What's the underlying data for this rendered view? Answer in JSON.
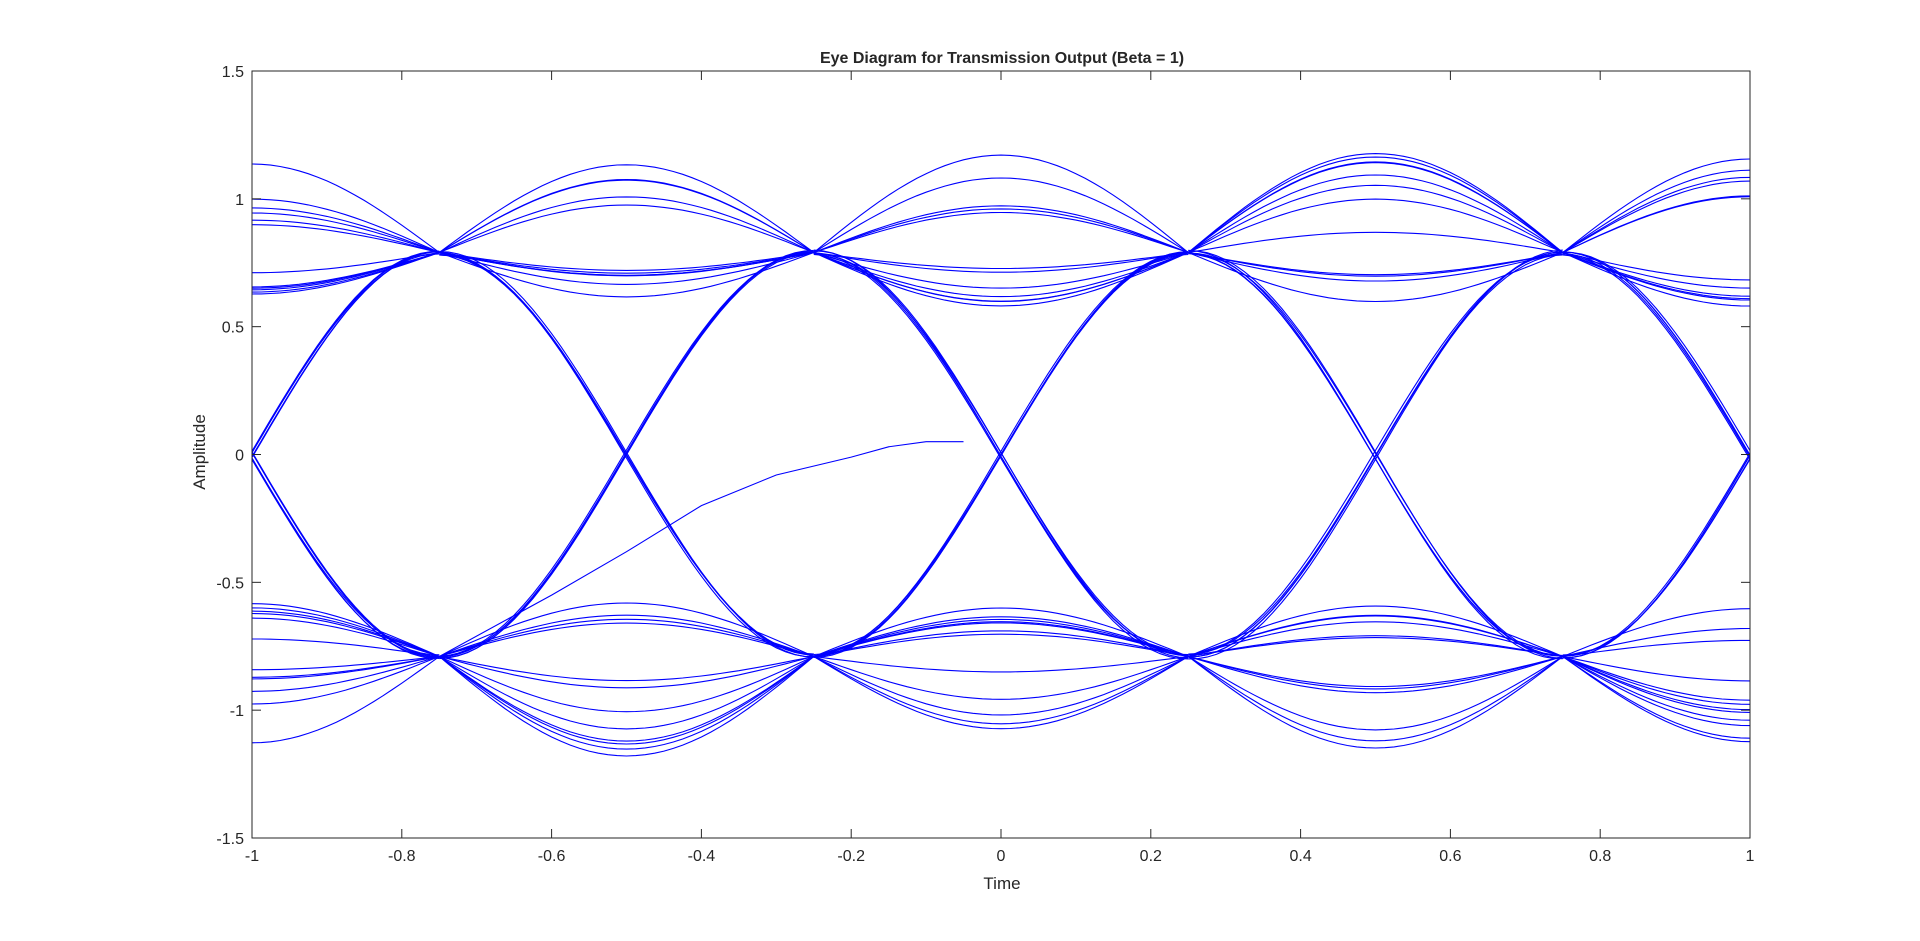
{
  "chart_data": {
    "type": "line",
    "title": "Eye Diagram for Transmission Output (Beta = 1)",
    "xlabel": "Time",
    "ylabel": "Amplitude",
    "xlim": [
      -1,
      1
    ],
    "ylim": [
      -1.5,
      1.5
    ],
    "xticks": [
      "-1",
      "-0.8",
      "-0.6",
      "-0.4",
      "-0.2",
      "0",
      "0.2",
      "0.4",
      "0.6",
      "0.8",
      "1"
    ],
    "yticks": [
      "-1.5",
      "-1",
      "-0.5",
      "0",
      "0.5",
      "1",
      "1.5"
    ],
    "grid": false,
    "box": true,
    "line_color": "#0000ff",
    "crossing_points": {
      "zero_crossings_x": [
        -0.5,
        0.5
      ],
      "upper_nodes": [
        [
          -0.75,
          0.79
        ],
        [
          -0.25,
          0.79
        ],
        [
          0.25,
          0.79
        ],
        [
          0.75,
          0.79
        ]
      ],
      "lower_nodes": [
        [
          -0.75,
          -0.79
        ],
        [
          -0.25,
          -0.79
        ],
        [
          0.25,
          -0.79
        ],
        [
          0.75,
          -0.79
        ]
      ]
    },
    "extra_trace": {
      "x": [
        -0.75,
        -0.6,
        -0.5,
        -0.4,
        -0.3,
        -0.2,
        -0.15,
        -0.1,
        -0.05
      ],
      "y": [
        -0.79,
        -0.55,
        -0.38,
        -0.2,
        -0.08,
        -0.01,
        0.03,
        0.05,
        0.05
      ]
    }
  }
}
